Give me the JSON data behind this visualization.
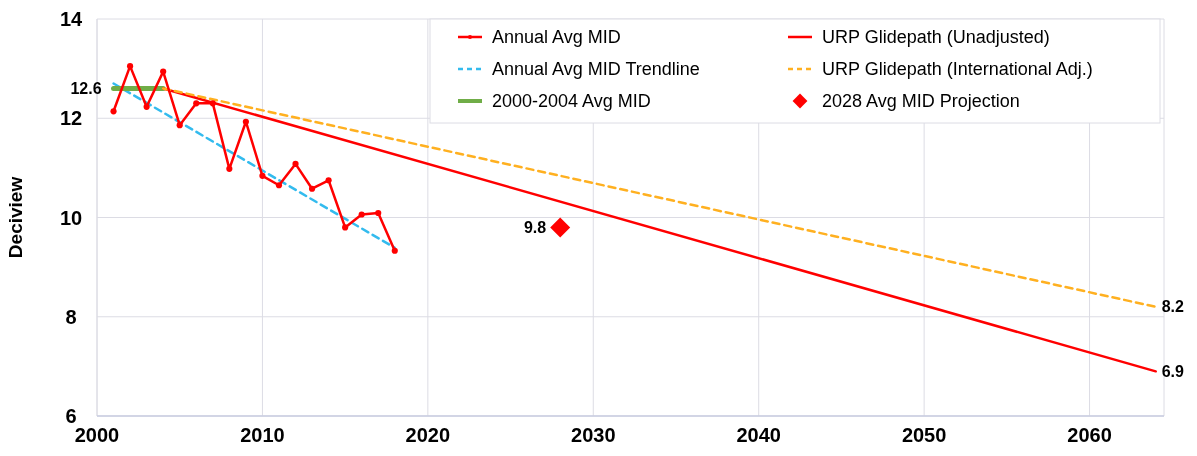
{
  "chart_data": {
    "type": "line",
    "ylabel": "Deciview",
    "xlim": [
      2000,
      2064.5
    ],
    "xticks": [
      2000,
      2010,
      2020,
      2030,
      2040,
      2050,
      2060
    ],
    "ylim": [
      6,
      14
    ],
    "yticks": [
      6,
      8,
      10,
      12,
      14
    ],
    "grid": true,
    "legend": "top right",
    "series": [
      {
        "name": "Annual Avg MID",
        "color": "#ff0000",
        "marker": "circle",
        "line_style": "solid",
        "x": [
          2001,
          2002,
          2003,
          2004,
          2005,
          2006,
          2007,
          2008,
          2009,
          2010,
          2011,
          2012,
          2013,
          2014,
          2015,
          2016,
          2017,
          2018
        ],
        "values": [
          12.14,
          13.05,
          12.23,
          12.94,
          11.86,
          12.3,
          12.3,
          10.98,
          11.93,
          10.84,
          10.65,
          11.08,
          10.58,
          10.75,
          9.8,
          10.06,
          10.09,
          9.33
        ]
      },
      {
        "name": "Annual Avg MID Trendline",
        "color": "#33bbee",
        "marker": "none",
        "line_style": "dashed",
        "x": [
          2001,
          2018
        ],
        "values": [
          12.7,
          9.39
        ]
      },
      {
        "name": "2000-2004 Avg MID",
        "color": "#70ad47",
        "marker": "none",
        "line_style": "solid",
        "x": [
          2001,
          2004
        ],
        "values": [
          12.6,
          12.6
        ]
      },
      {
        "name": "URP Glidepath (Unadjusted)",
        "color": "#ff0000",
        "marker": "none",
        "line_style": "solid",
        "x": [
          2004,
          2064
        ],
        "values": [
          12.6,
          6.9
        ]
      },
      {
        "name": "URP Glidepath (International Adj.)",
        "color": "#ffb020",
        "marker": "none",
        "line_style": "dashed",
        "x": [
          2004,
          2064
        ],
        "values": [
          12.6,
          8.2
        ]
      },
      {
        "name": "2028 Avg MID Projection",
        "type": "scatter",
        "color": "#ff0000",
        "marker": "diamond",
        "x": [
          2028
        ],
        "values": [
          9.8
        ]
      }
    ],
    "annotations": [
      {
        "text": "12.6",
        "x": 2001,
        "y": 12.6
      },
      {
        "text": "9.8",
        "x": 2028,
        "y": 9.8
      },
      {
        "text": "8.2",
        "x": 2064,
        "y": 8.2
      },
      {
        "text": "6.9",
        "x": 2064,
        "y": 6.9
      }
    ]
  }
}
